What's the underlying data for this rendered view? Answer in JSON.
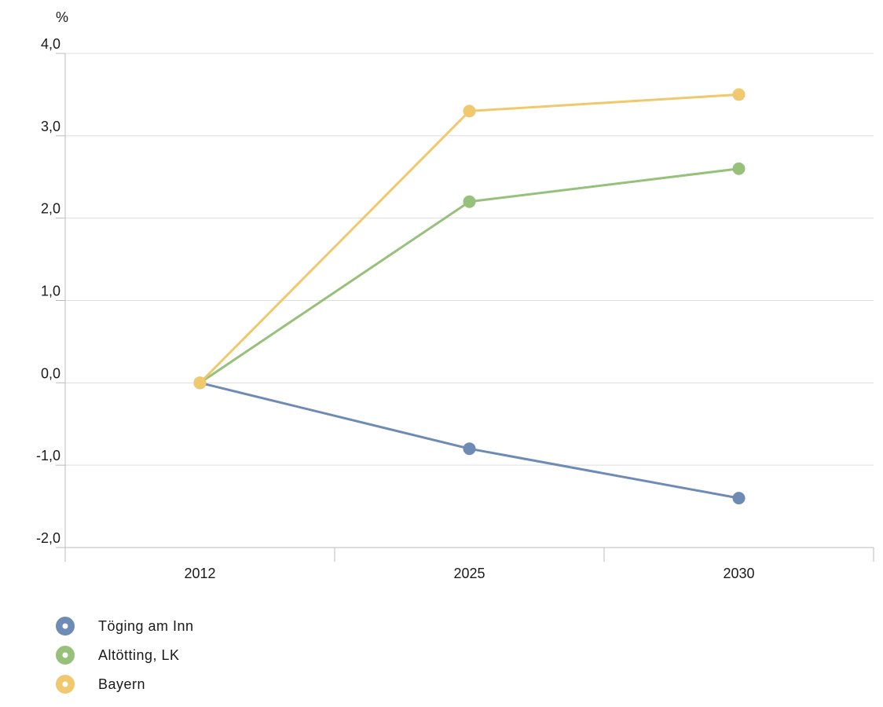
{
  "chart_data": {
    "type": "line",
    "title": "",
    "xlabel": "",
    "ylabel": "",
    "unit_label": "%",
    "categories": [
      "2012",
      "2025",
      "2030"
    ],
    "ylim": [
      -2.0,
      4.0
    ],
    "yticks": [
      {
        "value": -2.0,
        "label": "-2,0"
      },
      {
        "value": -1.0,
        "label": "-1,0"
      },
      {
        "value": 0.0,
        "label": "0,0"
      },
      {
        "value": 1.0,
        "label": "1,0"
      },
      {
        "value": 2.0,
        "label": "2,0"
      },
      {
        "value": 3.0,
        "label": "3,0"
      },
      {
        "value": 4.0,
        "label": "4,0"
      }
    ],
    "grid": true,
    "legend_position": "bottom-left",
    "series": [
      {
        "name": "Töging am Inn",
        "color": "#6e8bb5",
        "values": [
          0.0,
          -0.8,
          -1.4
        ]
      },
      {
        "name": "Altötting, LK",
        "color": "#97c17a",
        "values": [
          0.0,
          2.2,
          2.6
        ]
      },
      {
        "name": "Bayern",
        "color": "#f0c96e",
        "values": [
          0.0,
          3.3,
          3.5
        ]
      }
    ]
  }
}
